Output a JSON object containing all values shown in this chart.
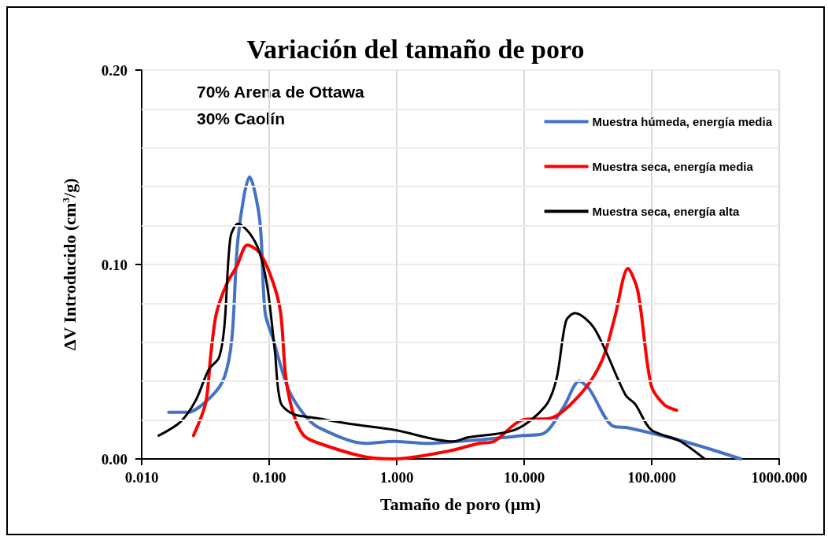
{
  "chart_data": {
    "type": "line",
    "title": "Variación del tamaño de poro",
    "xlabel": "Tamaño de poro (µm)",
    "ylabel": "ΔV Introducido (cm$^{3}$/g)",
    "annotations": [
      "70% Arena de Ottawa",
      "30% Caolín"
    ],
    "log": "x",
    "xlim": [
      0.01,
      1000
    ],
    "xticks": [
      {
        "value": 0.01,
        "label": "0.010"
      },
      {
        "value": 0.1,
        "label": "0.100"
      },
      {
        "value": 1,
        "label": "1.000"
      },
      {
        "value": 10,
        "label": "10.000"
      },
      {
        "value": 100,
        "label": "100.000"
      },
      {
        "value": 1000,
        "label": "1000.000"
      }
    ],
    "ylim": [
      0,
      0.2
    ],
    "yticks": [
      {
        "value": 0,
        "label": "0.00"
      },
      {
        "value": 0.02,
        "label": null
      },
      {
        "value": 0.04,
        "label": null
      },
      {
        "value": 0.06,
        "label": null
      },
      {
        "value": 0.08,
        "label": null
      },
      {
        "value": 0.1,
        "label": "0.10"
      },
      {
        "value": 0.12,
        "label": null
      },
      {
        "value": 0.14,
        "label": null
      },
      {
        "value": 0.16,
        "label": null
      },
      {
        "value": 0.18,
        "label": null
      },
      {
        "value": 0.2,
        "label": "0.20"
      }
    ],
    "grid": true,
    "legend": "top right",
    "marker": "none",
    "line_style": "solid",
    "series": [
      {
        "name": "Muestra húmeda, energía media",
        "color": "#4472c4",
        "x": [
          0.0163,
          0.023,
          0.035,
          0.0445,
          0.051,
          0.0571,
          0.0703,
          0.0843,
          0.093,
          0.107,
          0.141,
          0.187,
          0.247,
          0.569,
          0.953,
          1.74,
          3.03,
          7.0,
          9.64,
          14.1,
          20.5,
          27,
          32.4,
          49.2,
          65.1,
          180,
          500
        ],
        "values": [
          0.024,
          0.024,
          0.032,
          0.042,
          0.062,
          0.114,
          0.145,
          0.123,
          0.075,
          0.062,
          0.036,
          0.023,
          0.016,
          0.008,
          0.009,
          0.008,
          0.009,
          0.011,
          0.012,
          0.013,
          0.027,
          0.04,
          0.036,
          0.017,
          0.016,
          0.009,
          0
        ]
      },
      {
        "name": "Muestra seca, energía media",
        "color": "#ff0000",
        "x": [
          0.0255,
          0.0318,
          0.035,
          0.0386,
          0.0464,
          0.0556,
          0.0675,
          0.0843,
          0.107,
          0.123,
          0.135,
          0.155,
          0.187,
          0.247,
          0.569,
          0.95,
          2.53,
          4.42,
          5.8,
          9.64,
          16.2,
          28.2,
          41,
          51.4,
          65.1,
          78,
          98.9,
          125,
          157
        ],
        "values": [
          0.012,
          0.029,
          0.055,
          0.075,
          0.09,
          0.099,
          0.11,
          0.106,
          0.091,
          0.075,
          0.042,
          0.023,
          0.012,
          0.008,
          0.001,
          0,
          0.004,
          0.008,
          0.009,
          0.02,
          0.021,
          0.034,
          0.051,
          0.073,
          0.098,
          0.086,
          0.038,
          0.028,
          0.025
        ]
      },
      {
        "name": "Muestra seca, energía alta",
        "color": "#000000",
        "x": [
          0.0136,
          0.0201,
          0.0265,
          0.0336,
          0.0403,
          0.0445,
          0.0497,
          0.057,
          0.0703,
          0.0843,
          0.097,
          0.111,
          0.123,
          0.155,
          0.237,
          0.43,
          0.95,
          2.75,
          3.6,
          8.5,
          14.6,
          17.9,
          21.3,
          25.0,
          35.6,
          62.2,
          74.6,
          98.9,
          164,
          260
        ],
        "values": [
          0.012,
          0.019,
          0.03,
          0.046,
          0.052,
          0.068,
          0.114,
          0.121,
          0.116,
          0.106,
          0.088,
          0.055,
          0.029,
          0.023,
          0.021,
          0.018,
          0.015,
          0.009,
          0.011,
          0.015,
          0.027,
          0.041,
          0.071,
          0.075,
          0.067,
          0.033,
          0.028,
          0.015,
          0.0094,
          0
        ]
      }
    ]
  }
}
